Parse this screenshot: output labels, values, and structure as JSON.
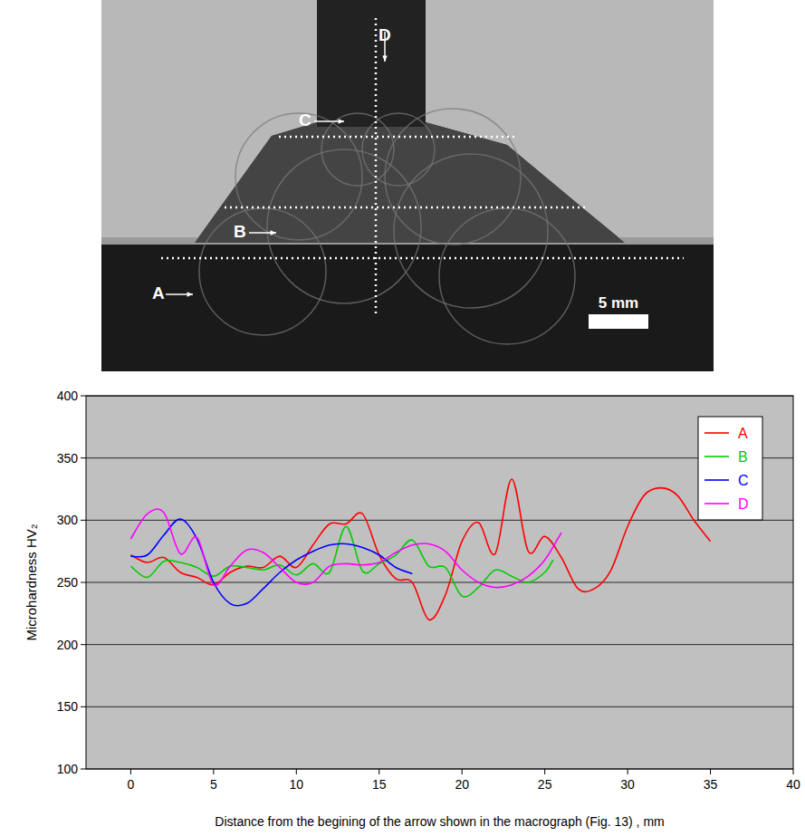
{
  "chart_data": {
    "type": "line",
    "x_label": "Distance from the begining of the arrow shown in the macrograph (Fig. 13) , mm",
    "y_label": "Microhardness HV₂",
    "xlim": [
      -2.7,
      40
    ],
    "xticks": [
      0,
      5,
      10,
      15,
      20,
      25,
      30,
      35,
      40
    ],
    "ylim": [
      100,
      400
    ],
    "yticks": [
      100,
      150,
      200,
      250,
      300,
      350,
      400
    ],
    "grid": true,
    "legend": "upper right",
    "series": [
      {
        "name": "A",
        "color": "#ff0000",
        "x": [
          0,
          1,
          2,
          3,
          4,
          5,
          6,
          7,
          8,
          9,
          10,
          11,
          12,
          13,
          14,
          15,
          16,
          17,
          18,
          19,
          20,
          21,
          22,
          23,
          24,
          25,
          26,
          27,
          28,
          29,
          30,
          31,
          32,
          33,
          34,
          35
        ],
        "values": [
          272,
          266,
          270,
          258,
          254,
          248,
          258,
          263,
          262,
          271,
          262,
          280,
          297,
          297,
          305,
          272,
          253,
          250,
          220,
          240,
          283,
          298,
          273,
          333,
          275,
          287,
          270,
          245,
          245,
          260,
          295,
          320,
          326,
          320,
          300,
          283
        ]
      },
      {
        "name": "B",
        "color": "#00cc00",
        "x": [
          0,
          1,
          2,
          3,
          4,
          5,
          6,
          7,
          8,
          9,
          10,
          11,
          12,
          13,
          14,
          15,
          16,
          17,
          18,
          19,
          20,
          21,
          22,
          23,
          24,
          25,
          25.5
        ],
        "values": [
          263,
          254,
          267,
          266,
          262,
          255,
          263,
          262,
          260,
          264,
          256,
          265,
          258,
          295,
          259,
          265,
          272,
          284,
          263,
          262,
          239,
          246,
          260,
          255,
          250,
          258,
          268
        ]
      },
      {
        "name": "C",
        "color": "#0000ff",
        "x": [
          0,
          1,
          2,
          3,
          4,
          5,
          6,
          7,
          8,
          9,
          10,
          11,
          12,
          13,
          14,
          15,
          16,
          17
        ],
        "values": [
          271,
          272,
          288,
          301,
          285,
          250,
          233,
          233,
          245,
          258,
          268,
          275,
          280,
          281,
          278,
          272,
          262,
          257
        ]
      },
      {
        "name": "D",
        "color": "#ff00ff",
        "x": [
          0,
          1,
          2,
          3,
          4,
          5,
          6,
          7,
          8,
          9,
          10,
          11,
          12,
          13,
          14,
          15,
          16,
          17,
          18,
          19,
          20,
          21,
          22,
          23,
          24,
          25,
          26
        ],
        "values": [
          285,
          305,
          306,
          273,
          286,
          248,
          263,
          276,
          274,
          262,
          250,
          250,
          263,
          265,
          264,
          266,
          274,
          280,
          281,
          275,
          260,
          250,
          246,
          248,
          255,
          268,
          290
        ]
      }
    ]
  },
  "macrograph": {
    "labels": [
      "A",
      "B",
      "C",
      "D"
    ],
    "scale_bar": "5 mm"
  }
}
